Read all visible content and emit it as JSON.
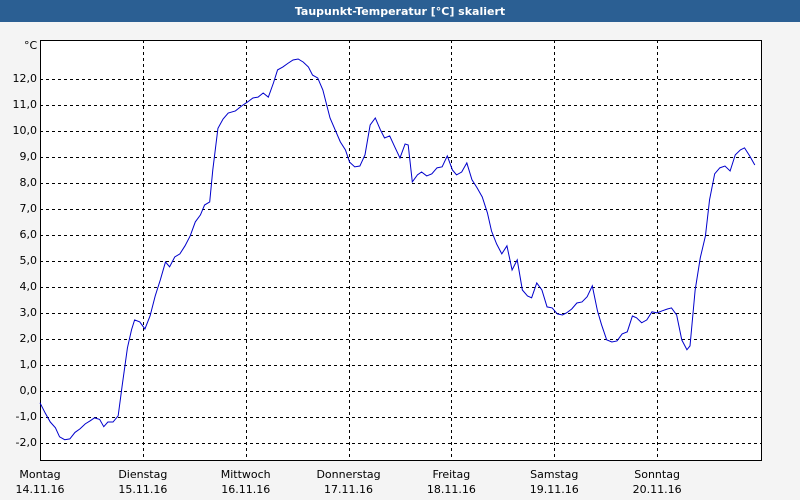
{
  "chart_data": {
    "type": "line",
    "title": "Taupunkt-Temperatur [°C] skaliert",
    "y_label": "°C",
    "color": "#0000cc",
    "grid": true,
    "xlim": [
      0,
      7.02
    ],
    "ylim": [
      -2.7,
      13.5
    ],
    "xticks": [
      {
        "value": 0,
        "label": "Montag",
        "date": "14.11.16"
      },
      {
        "value": 1,
        "label": "Dienstag",
        "date": "15.11.16"
      },
      {
        "value": 2,
        "label": "Mittwoch",
        "date": "16.11.16"
      },
      {
        "value": 3,
        "label": "Donnerstag",
        "date": "17.11.16"
      },
      {
        "value": 4,
        "label": "Freitag",
        "date": "18.11.16"
      },
      {
        "value": 5,
        "label": "Samstag",
        "date": "19.11.16"
      },
      {
        "value": 6,
        "label": "Sonntag",
        "date": "20.11.16"
      }
    ],
    "yticks": [
      {
        "value": -2,
        "label": "-2,0"
      },
      {
        "value": -1,
        "label": "-1,0"
      },
      {
        "value": 0,
        "label": "0,0"
      },
      {
        "value": 1,
        "label": "1,0"
      },
      {
        "value": 2,
        "label": "2,0"
      },
      {
        "value": 3,
        "label": "3,0"
      },
      {
        "value": 4,
        "label": "4,0"
      },
      {
        "value": 5,
        "label": "5,0"
      },
      {
        "value": 6,
        "label": "6,0"
      },
      {
        "value": 7,
        "label": "7,0"
      },
      {
        "value": 8,
        "label": "8,0"
      },
      {
        "value": 9,
        "label": "9,0"
      },
      {
        "value": 10,
        "label": "10,0"
      },
      {
        "value": 11,
        "label": "11,0"
      },
      {
        "value": 12,
        "label": "12,0"
      }
    ],
    "x": [
      0,
      0.05,
      0.1,
      0.15,
      0.19,
      0.24,
      0.29,
      0.34,
      0.39,
      0.44,
      0.49,
      0.53,
      0.58,
      0.62,
      0.66,
      0.71,
      0.76,
      0.8,
      0.85,
      0.89,
      0.92,
      0.97,
      1.02,
      1.07,
      1.12,
      1.17,
      1.22,
      1.26,
      1.31,
      1.36,
      1.41,
      1.46,
      1.51,
      1.56,
      1.6,
      1.65,
      1.68,
      1.73,
      1.78,
      1.83,
      1.9,
      1.96,
      2.02,
      2.07,
      2.12,
      2.17,
      2.22,
      2.27,
      2.31,
      2.36,
      2.41,
      2.46,
      2.51,
      2.56,
      2.61,
      2.65,
      2.7,
      2.75,
      2.82,
      2.87,
      2.92,
      2.97,
      3.01,
      3.06,
      3.11,
      3.16,
      3.21,
      3.26,
      3.31,
      3.35,
      3.4,
      3.45,
      3.5,
      3.55,
      3.58,
      3.62,
      3.67,
      3.71,
      3.76,
      3.81,
      3.86,
      3.91,
      3.96,
      4.01,
      4.05,
      4.1,
      4.15,
      4.2,
      4.25,
      4.3,
      4.35,
      4.39,
      4.44,
      4.49,
      4.54,
      4.59,
      4.64,
      4.69,
      4.74,
      4.78,
      4.83,
      4.88,
      4.93,
      4.98,
      5.03,
      5.08,
      5.12,
      5.17,
      5.22,
      5.27,
      5.32,
      5.37,
      5.42,
      5.46,
      5.51,
      5.56,
      5.61,
      5.66,
      5.71,
      5.76,
      5.8,
      5.85,
      5.9,
      5.95,
      6.0,
      6.05,
      6.1,
      6.14,
      6.19,
      6.24,
      6.29,
      6.32,
      6.37,
      6.42,
      6.47,
      6.51,
      6.56,
      6.61,
      6.66,
      6.71,
      6.76,
      6.81,
      6.85,
      6.9,
      6.95
    ],
    "values": [
      -0.46,
      -0.85,
      -1.2,
      -1.42,
      -1.77,
      -1.88,
      -1.85,
      -1.6,
      -1.46,
      -1.27,
      -1.15,
      -1.04,
      -1.1,
      -1.38,
      -1.2,
      -1.2,
      -0.96,
      0.23,
      1.65,
      2.35,
      2.73,
      2.65,
      2.38,
      2.88,
      3.65,
      4.27,
      4.96,
      4.77,
      5.15,
      5.27,
      5.58,
      5.96,
      6.5,
      6.77,
      7.15,
      7.27,
      8.5,
      10.1,
      10.46,
      10.69,
      10.77,
      10.96,
      11.12,
      11.27,
      11.3,
      11.46,
      11.3,
      11.85,
      12.35,
      12.46,
      12.6,
      12.73,
      12.77,
      12.65,
      12.46,
      12.15,
      12.04,
      11.58,
      10.5,
      10.04,
      9.58,
      9.27,
      8.8,
      8.62,
      8.65,
      9.08,
      10.23,
      10.5,
      10.04,
      9.73,
      9.81,
      9.38,
      8.96,
      9.5,
      9.46,
      8.04,
      8.31,
      8.42,
      8.27,
      8.35,
      8.58,
      8.62,
      9.04,
      8.5,
      8.31,
      8.42,
      8.77,
      8.12,
      7.81,
      7.46,
      6.85,
      6.15,
      5.65,
      5.27,
      5.58,
      4.65,
      5.04,
      3.88,
      3.65,
      3.58,
      4.15,
      3.88,
      3.23,
      3.19,
      2.96,
      2.92,
      3.0,
      3.15,
      3.38,
      3.42,
      3.62,
      4.04,
      3.08,
      2.54,
      1.96,
      1.88,
      1.92,
      2.19,
      2.27,
      2.88,
      2.81,
      2.62,
      2.73,
      3.04,
      3.0,
      3.08,
      3.15,
      3.19,
      2.92,
      1.96,
      1.58,
      1.73,
      3.88,
      5.12,
      5.96,
      7.35,
      8.35,
      8.58,
      8.65,
      8.46,
      9.08,
      9.27,
      9.35,
      9.04,
      8.69
    ]
  }
}
